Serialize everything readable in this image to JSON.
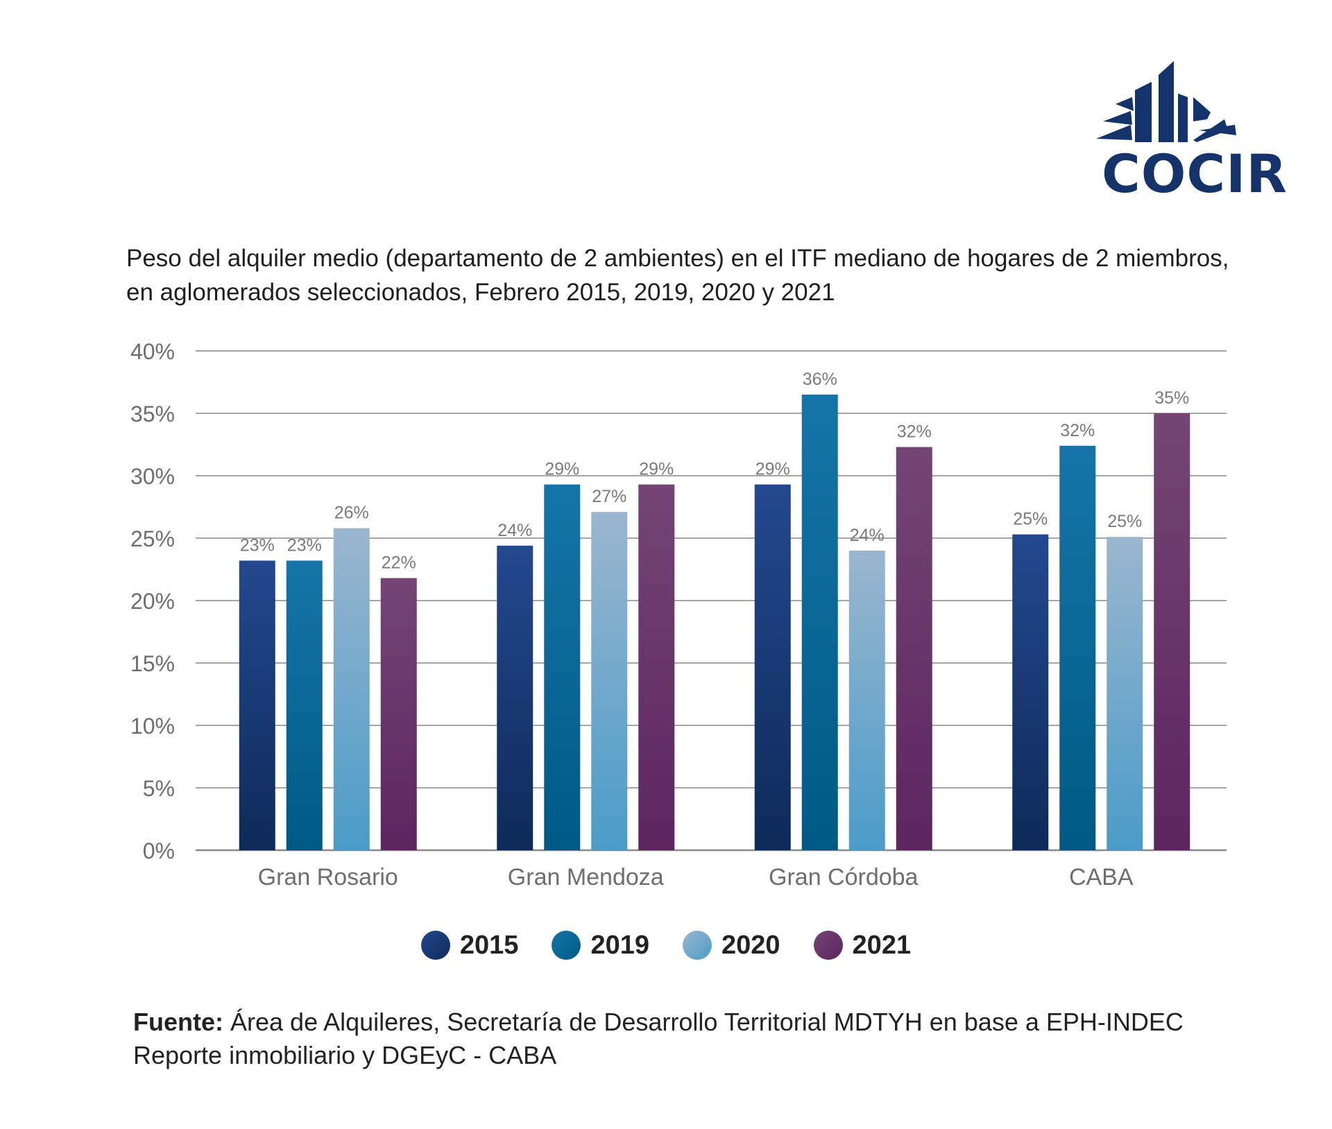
{
  "brand": {
    "name": "COCIR",
    "color": "#14336b"
  },
  "title_lines": [
    "Peso del alquiler medio (departamento de 2 ambientes) en el ITF mediano de hogares de 2 miembros,",
    "en aglomerados seleccionados, Febrero 2015, 2019, 2020 y 2021"
  ],
  "chart_data": {
    "type": "bar",
    "categories": [
      "Gran Rosario",
      "Gran Mendoza",
      "Gran Córdoba",
      "CABA"
    ],
    "series": [
      {
        "name": "2015",
        "values": [
          23.2,
          24.4,
          29.3,
          25.3
        ],
        "labels": [
          "23%",
          "24%",
          "29%",
          "25%"
        ],
        "color_top": "#24488f",
        "color_bottom": "#0d2a58"
      },
      {
        "name": "2019",
        "values": [
          23.2,
          29.3,
          36.5,
          32.4
        ],
        "labels": [
          "23%",
          "29%",
          "36%",
          "32%"
        ],
        "color_top": "#1575a8",
        "color_bottom": "#005985"
      },
      {
        "name": "2020",
        "values": [
          25.8,
          27.1,
          24.0,
          25.1
        ],
        "labels": [
          "26%",
          "27%",
          "24%",
          "25%"
        ],
        "color_top": "#9bb6cf",
        "color_bottom": "#4a9cc8"
      },
      {
        "name": "2021",
        "values": [
          21.8,
          29.3,
          32.3,
          35.0
        ],
        "labels": [
          "22%",
          "29%",
          "32%",
          "35%"
        ],
        "color_top": "#744574",
        "color_bottom": "#5c2560"
      }
    ],
    "yticks": [
      "0%",
      "5%",
      "10%",
      "15%",
      "20%",
      "25%",
      "30%",
      "35%",
      "40%"
    ],
    "ylim": [
      0,
      40
    ],
    "grid": true,
    "legend_position": "bottom"
  },
  "source": {
    "label": "Fuente:",
    "line1": " Área de Alquileres, Secretaría de Desarrollo Territorial MDTYH en base a EPH-INDEC",
    "line2": "Reporte inmobiliario y DGEyC - CABA"
  }
}
